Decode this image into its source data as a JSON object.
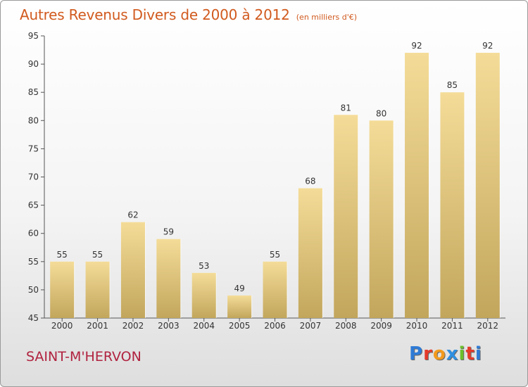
{
  "header": {
    "title": "Autres Revenus Divers de 2000 à 2012",
    "unit": "(en milliers d'€)"
  },
  "footer": {
    "commune": "SAINT-M'HERVON",
    "logo_letters": [
      "P",
      "r",
      "o",
      "x",
      "i",
      "t",
      "i"
    ]
  },
  "chart_data": {
    "type": "bar",
    "title": "Autres Revenus Divers de 2000 à 2012",
    "subtitle": "(en milliers d'€)",
    "xlabel": "",
    "ylabel": "",
    "categories": [
      "2000",
      "2001",
      "2002",
      "2003",
      "2004",
      "2005",
      "2006",
      "2007",
      "2008",
      "2009",
      "2010",
      "2011",
      "2012"
    ],
    "values": [
      55,
      55,
      62,
      59,
      53,
      49,
      55,
      68,
      81,
      80,
      92,
      85,
      92
    ],
    "ylim": [
      45,
      95
    ],
    "yticks": [
      45,
      50,
      55,
      60,
      65,
      70,
      75,
      80,
      85,
      90,
      95
    ],
    "grid": false,
    "data_labels": true,
    "colors": {
      "bar_top": "#f4dc98",
      "bar_bottom": "#c2a65c",
      "axis": "#555555",
      "text": "#333333"
    }
  }
}
